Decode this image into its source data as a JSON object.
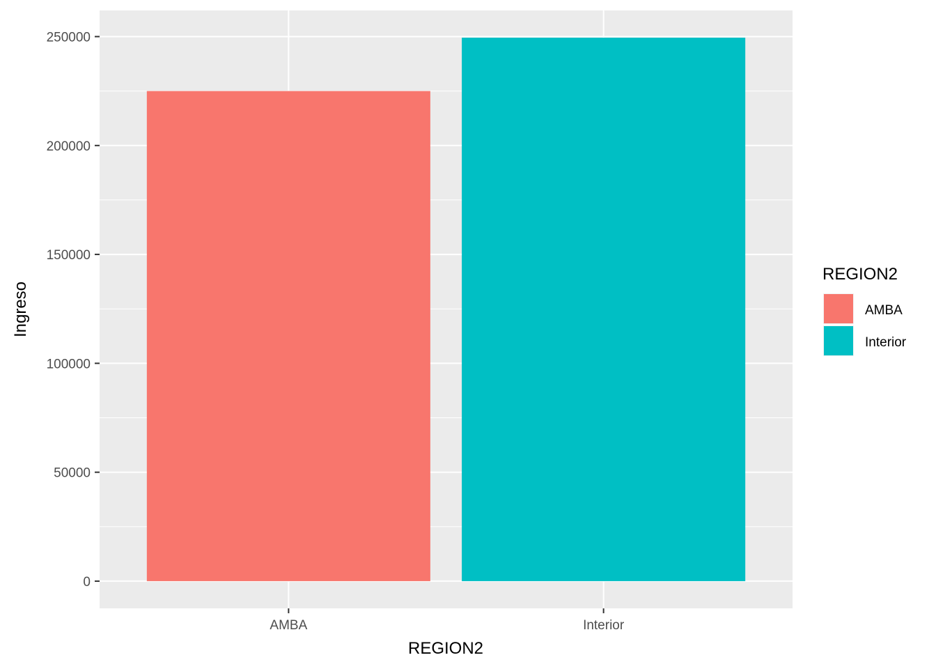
{
  "chart_data": {
    "type": "bar",
    "categories": [
      "AMBA",
      "Interior"
    ],
    "values": [
      225000,
      249500
    ],
    "xlabel": "REGION2",
    "ylabel": "Ingreso",
    "ylim": [
      -12500,
      262000
    ],
    "yticks": [
      0,
      50000,
      100000,
      150000,
      200000,
      250000
    ],
    "ytick_labels": [
      "0",
      "50000",
      "100000",
      "150000",
      "200000",
      "250000"
    ],
    "grid": true,
    "legend": {
      "title": "REGION2",
      "position": "right",
      "items": [
        {
          "label": "AMBA",
          "color": "#F8766D"
        },
        {
          "label": "Interior",
          "color": "#00BFC4"
        }
      ]
    },
    "colors": [
      "#F8766D",
      "#00BFC4"
    ],
    "panel_background": "#EBEBEB"
  }
}
